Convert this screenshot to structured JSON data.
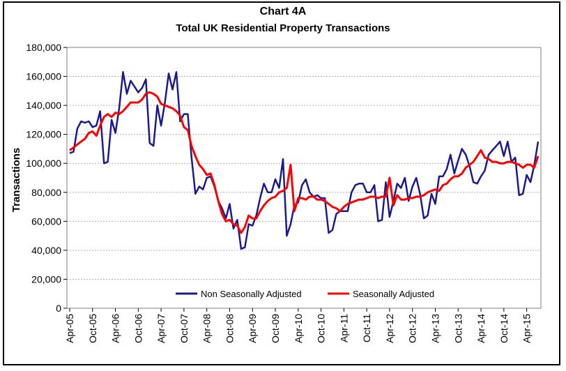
{
  "chart_data": {
    "type": "line",
    "title": "Chart 4A",
    "subtitle": "Total UK Residential Property Transactions",
    "ylabel": "Transactions",
    "xlabel": "",
    "ylim": [
      0,
      180000
    ],
    "y_ticks": [
      "0",
      "20,000",
      "40,000",
      "60,000",
      "80,000",
      "100,000",
      "120,000",
      "140,000",
      "160,000",
      "180,000"
    ],
    "x_ticks": [
      "Apr-05",
      "Oct-05",
      "Apr-06",
      "Oct-06",
      "Apr-07",
      "Oct-07",
      "Apr-08",
      "Oct-08",
      "Apr-09",
      "Oct-09",
      "Apr-10",
      "Oct-10",
      "Apr-11",
      "Oct-11",
      "Apr-12",
      "Oct-12",
      "Apr-13",
      "Oct-13",
      "Apr-14",
      "Oct-14",
      "Apr-15"
    ],
    "grid": true,
    "legend_position": "bottom-inside",
    "series": [
      {
        "name": "Non Seasonally Adjusted",
        "color": "#1a1a8c",
        "values": [
          107000,
          108000,
          124000,
          129000,
          128000,
          129000,
          125000,
          126000,
          136000,
          100000,
          101000,
          130000,
          121000,
          138000,
          163000,
          148000,
          157000,
          153000,
          149000,
          152000,
          158000,
          114000,
          112000,
          140000,
          126000,
          142000,
          162000,
          151000,
          163000,
          129000,
          134000,
          134000,
          104000,
          79000,
          84000,
          82000,
          90000,
          91000,
          84000,
          74000,
          69000,
          62000,
          72000,
          55000,
          61000,
          41000,
          42000,
          58000,
          57000,
          64000,
          76000,
          86000,
          80000,
          80000,
          89000,
          83000,
          103000,
          50000,
          58000,
          71000,
          73000,
          85000,
          89000,
          80000,
          77000,
          78000,
          76000,
          76000,
          52000,
          54000,
          65000,
          67000,
          67000,
          67000,
          80000,
          85000,
          86000,
          86000,
          80000,
          80000,
          85000,
          60000,
          61000,
          87000,
          63000,
          74000,
          86000,
          83000,
          90000,
          74000,
          84000,
          90000,
          79000,
          62000,
          64000,
          79000,
          72000,
          91000,
          91000,
          96000,
          106000,
          93000,
          102000,
          110000,
          106000,
          98000,
          87000,
          86000,
          91000,
          95000,
          106000,
          109000,
          112000,
          115000,
          105000,
          115000,
          101000,
          104000,
          78000,
          79000,
          92000,
          87000,
          99000,
          115000
        ]
      },
      {
        "name": "Seasonally Adjusted",
        "color": "#ff0000",
        "values": [
          109000,
          111000,
          113000,
          115000,
          117000,
          121000,
          122000,
          119000,
          126000,
          132000,
          134000,
          132000,
          135000,
          134000,
          136000,
          139000,
          142000,
          142000,
          142000,
          144000,
          148000,
          149000,
          148000,
          146000,
          141000,
          140000,
          139000,
          138000,
          136000,
          133000,
          125000,
          123000,
          112000,
          105000,
          99000,
          96000,
          92000,
          93000,
          85000,
          74000,
          65000,
          60000,
          61000,
          58000,
          57000,
          52000,
          56000,
          64000,
          62000,
          62000,
          67000,
          71000,
          74000,
          76000,
          77000,
          80000,
          81000,
          83000,
          99000,
          67000,
          76000,
          76000,
          75000,
          77000,
          77000,
          75000,
          75000,
          74000,
          72000,
          70000,
          69000,
          67000,
          70000,
          72000,
          73000,
          74000,
          75000,
          75000,
          76000,
          77000,
          77000,
          76000,
          77000,
          77000,
          90000,
          71000,
          78000,
          75000,
          75000,
          76000,
          76000,
          77000,
          77000,
          78000,
          80000,
          81000,
          82000,
          81000,
          85000,
          86000,
          89000,
          91000,
          91000,
          93000,
          97000,
          99000,
          101000,
          105000,
          109000,
          104000,
          103000,
          101000,
          101000,
          100000,
          100000,
          101000,
          101000,
          100000,
          99000,
          97000,
          99000,
          99000,
          97000,
          105000
        ]
      }
    ]
  }
}
